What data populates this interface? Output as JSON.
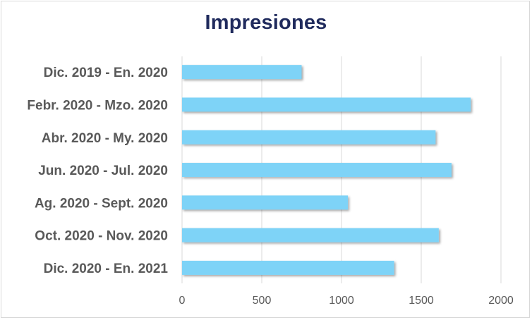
{
  "chart_data": {
    "type": "bar",
    "orientation": "horizontal",
    "title": "Impresiones",
    "categories": [
      "Dic. 2019 - En. 2020",
      "Febr. 2020 - Mzo. 2020",
      "Abr. 2020 - My. 2020",
      "Jun. 2020 - Jul. 2020",
      "Ag. 2020 - Sept. 2020",
      "Oct. 2020 - Nov. 2020",
      "Dic. 2020 - En. 2021"
    ],
    "values": [
      750,
      1810,
      1590,
      1690,
      1040,
      1610,
      1330
    ],
    "xlim": [
      0,
      2000
    ],
    "x_ticks": [
      0,
      500,
      1000,
      1500,
      2000
    ],
    "x_tick_labels": [
      "0",
      "500",
      "1000",
      "1500",
      "2000"
    ],
    "grid": true,
    "legend": "none",
    "bar_color": "#7ed3f7",
    "title_color": "#1f2a5c"
  }
}
